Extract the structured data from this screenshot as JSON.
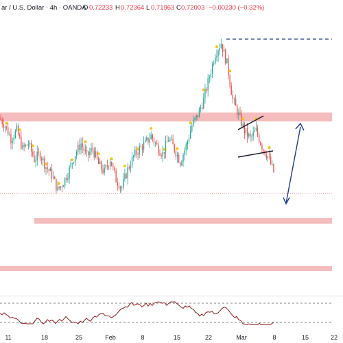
{
  "header": {
    "title": "ar / U.S. Dollar · 4h · OANDA",
    "open_label": "O",
    "open_value": "0.72233",
    "high_label": "H",
    "high_value": "0.72364",
    "low_label": "L",
    "low_value": "0.71963",
    "close_label": "C",
    "close_value": "0.72003",
    "change_value": "−0.00230 (−0.32%)"
  },
  "x_axis_labels": [
    "11",
    "18",
    "25",
    "Feb",
    "8",
    "15",
    "22",
    "Mar",
    "8",
    "15",
    "22"
  ],
  "colors": {
    "up_candle": "#26a69a",
    "down_candle": "#ef5350",
    "zone": "#f4bcbc",
    "marker_dot": "#f5c518",
    "projection_arrow": "#1e3a8a",
    "price_line": "#f7525f",
    "oscillator": "#8b1a1a"
  },
  "chart_data": {
    "type": "candlestick",
    "timeframe": "4h",
    "last_close": 0.72003,
    "candles_close_path": [
      0.741,
      0.738,
      0.733,
      0.736,
      0.729,
      0.731,
      0.725,
      0.727,
      0.722,
      0.719,
      0.713,
      0.716,
      0.721,
      0.727,
      0.731,
      0.726,
      0.729,
      0.723,
      0.72,
      0.725,
      0.717,
      0.714,
      0.721,
      0.726,
      0.729,
      0.731,
      0.734,
      0.73,
      0.727,
      0.733,
      0.729,
      0.724,
      0.73,
      0.738,
      0.742,
      0.748,
      0.757,
      0.766,
      0.77,
      0.762,
      0.748,
      0.742,
      0.736,
      0.733,
      0.736,
      0.73,
      0.726,
      0.72
    ],
    "resistance_zone_upper": "red zone near 0.742",
    "support_zones": [
      "red zone near 0.715",
      "red zone near 0.705"
    ],
    "annotations": [
      "dashed horizontal line at the high",
      "small rising wedge after the drop",
      "blue projection arrow pointing up to the upper zone"
    ]
  }
}
